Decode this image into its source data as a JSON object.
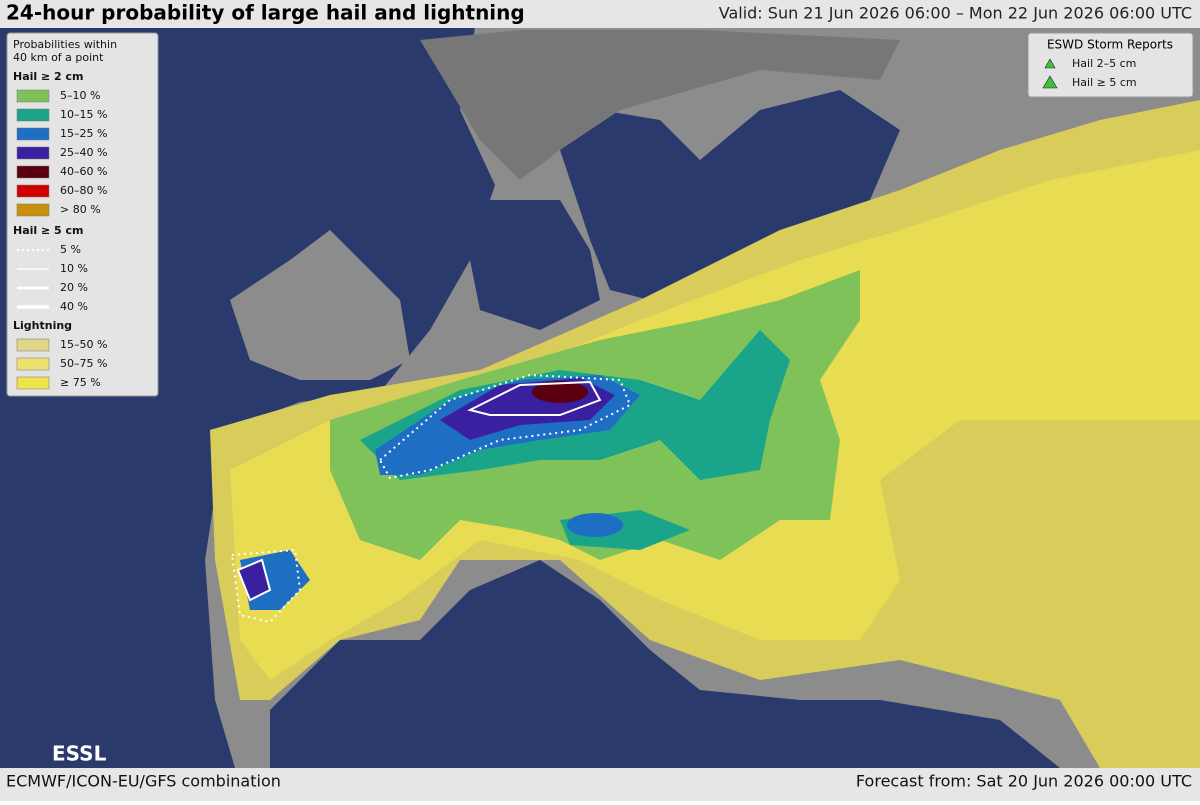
{
  "header": {
    "title": "24-hour probability of large hail and lightning",
    "valid": "Valid: Sun 21 Jun 2026 06:00 – Mon 22 Jun 2026 06:00 UTC"
  },
  "legend": {
    "heading": [
      "Probabilities within",
      "40 km of a point"
    ],
    "sections": [
      {
        "title": "Hail ≥ 2 cm",
        "items": [
          "5–10 %",
          "10–15 %",
          "15–25 %",
          "25–40 %",
          "40–60 %",
          "60–80 %",
          "> 80 %"
        ]
      },
      {
        "title": "Hail ≥ 5 cm",
        "items": [
          "5 %",
          "10 %",
          "20 %",
          "40 %"
        ]
      },
      {
        "title": "Lightning",
        "items": [
          "15–50 %",
          "50–75 %",
          "≥ 75 %"
        ]
      }
    ]
  },
  "reports": {
    "title": "ESWD Storm Reports",
    "items": [
      "Hail 2–5 cm",
      "Hail ≥ 5 cm"
    ]
  },
  "logo": "ESSL",
  "footer": {
    "model": "ECMWF/ICON-EU/GFS combination",
    "forecast": "Forecast from: Sat 20 Jun 2026 00:00 UTC"
  }
}
